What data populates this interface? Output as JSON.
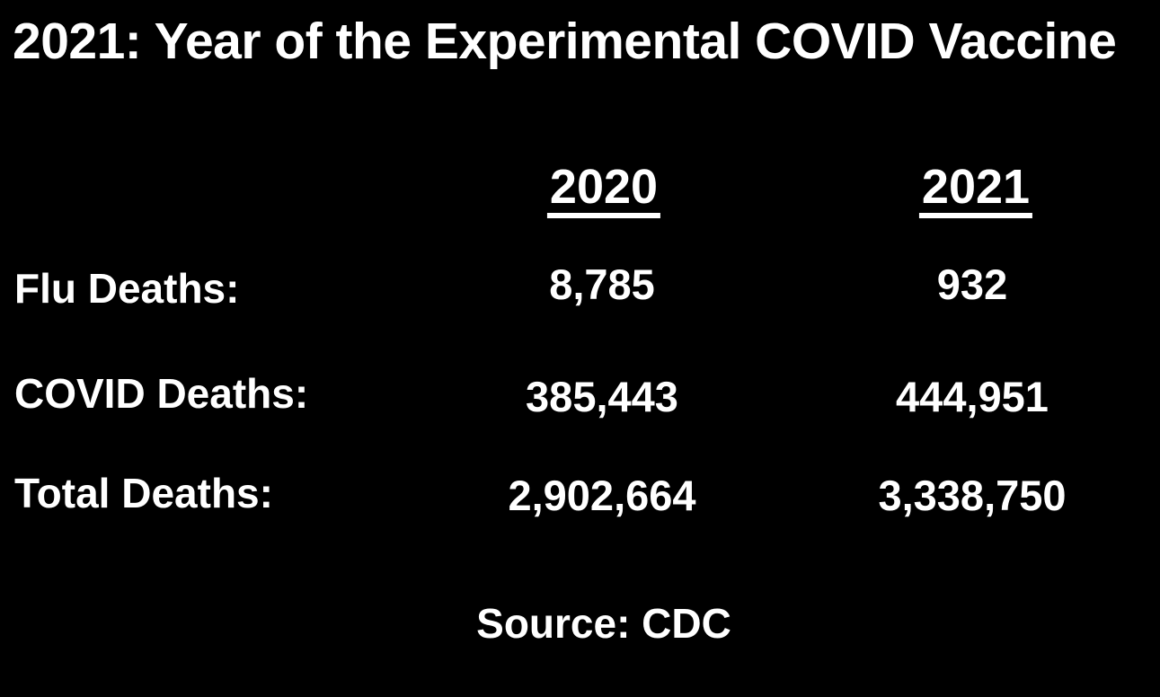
{
  "title": "2021: Year of the Experimental COVID Vaccine",
  "source": "Source: CDC",
  "colors": {
    "background": "#000000",
    "text": "#ffffff"
  },
  "chart_data": {
    "type": "table",
    "title": "2021: Year of the Experimental COVID Vaccine",
    "columns": [
      "2020",
      "2021"
    ],
    "rows": [
      {
        "label": "Flu Deaths:",
        "values": [
          "8,785",
          "932"
        ]
      },
      {
        "label": "COVID Deaths:",
        "values": [
          "385,443",
          "444,951"
        ]
      },
      {
        "label": "Total Deaths:",
        "values": [
          "2,902,664",
          "3,338,750"
        ]
      }
    ],
    "values_numeric": [
      [
        8785,
        932
      ],
      [
        385443,
        444951
      ],
      [
        2902664,
        3338750
      ]
    ],
    "source": "Source: CDC",
    "layout": {
      "background": "#000000",
      "text_color": "#ffffff",
      "grid": false,
      "column_headers_underlined": true
    }
  }
}
